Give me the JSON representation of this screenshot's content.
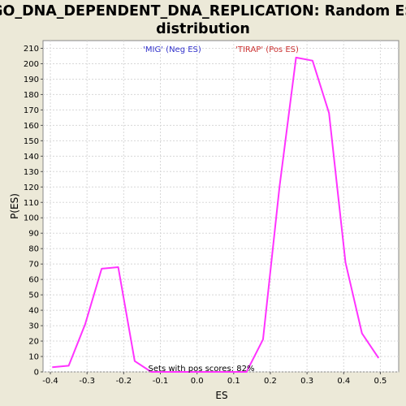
{
  "chart_data": {
    "type": "line",
    "title_line1": "GO_DNA_DEPENDENT_DNA_REPLICATION: Random ES",
    "title_line2": "distribution",
    "xlabel": "ES",
    "ylabel": "P(ES)",
    "xlim": [
      -0.42,
      0.55
    ],
    "ylim": [
      0,
      215
    ],
    "x_ticks": [
      -0.4,
      -0.3,
      -0.2,
      -0.1,
      0.0,
      0.1,
      0.2,
      0.3,
      0.4,
      0.5
    ],
    "x_tick_labels": [
      "-0.4",
      "-0.3",
      "-0.2",
      "-0.1",
      "0.0",
      "0.1",
      "0.2",
      "0.3",
      "0.4",
      "0.5"
    ],
    "y_ticks": [
      0,
      10,
      20,
      30,
      40,
      50,
      60,
      70,
      80,
      90,
      100,
      110,
      120,
      130,
      140,
      150,
      160,
      170,
      180,
      190,
      200,
      210
    ],
    "y_tick_labels": [
      "0",
      "10",
      "20",
      "30",
      "40",
      "50",
      "60",
      "70",
      "80",
      "90",
      "100",
      "110",
      "120",
      "130",
      "140",
      "150",
      "160",
      "170",
      "180",
      "190",
      "200",
      "210"
    ],
    "grid": true,
    "series": [
      {
        "color": "#ff33ff",
        "x": [
          -0.395,
          -0.35,
          -0.305,
          -0.26,
          -0.215,
          -0.17,
          -0.125,
          -0.08,
          -0.035,
          0.01,
          0.055,
          0.1,
          0.135,
          0.18,
          0.225,
          0.27,
          0.315,
          0.36,
          0.405,
          0.45,
          0.495
        ],
        "y": [
          3,
          4,
          31,
          67,
          68,
          7,
          0,
          0,
          0,
          0,
          0,
          0,
          0,
          21,
          120,
          204,
          202,
          168,
          71,
          25,
          9
        ]
      }
    ],
    "legend": [
      {
        "label": "'MIG' (Neg ES)",
        "color": "#3333cc"
      },
      {
        "label": "'TIRAP' (Pos ES)",
        "color": "#cc3333"
      }
    ],
    "annotation": "Sets with pos scores: 82%"
  }
}
